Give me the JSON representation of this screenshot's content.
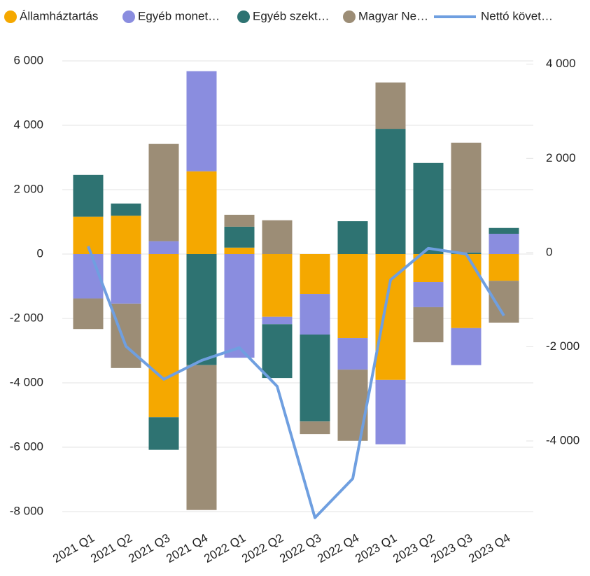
{
  "chart_data": {
    "type": "bar",
    "categories": [
      "2021 Q1",
      "2021 Q2",
      "2021 Q3",
      "2021 Q4",
      "2022 Q1",
      "2022 Q2",
      "2022 Q3",
      "2022 Q4",
      "2023 Q1",
      "2023 Q2",
      "2023 Q3",
      "2023 Q4"
    ],
    "series": [
      {
        "name": "Államháztartás",
        "color": "#f5a800",
        "values": [
          1160,
          1190,
          -5070,
          2570,
          200,
          -1950,
          -1240,
          -2610,
          -3910,
          -870,
          -2300,
          -830
        ]
      },
      {
        "name": "Egyéb monet…",
        "color": "#8a8ddf",
        "values": [
          -1380,
          -1540,
          400,
          3110,
          -3220,
          -230,
          -1260,
          -980,
          -2000,
          -780,
          -1150,
          630
        ]
      },
      {
        "name": "Egyéb szekt…",
        "color": "#2e7372",
        "values": [
          1300,
          380,
          -1010,
          -3450,
          650,
          -1670,
          -2700,
          1020,
          3890,
          2830,
          50,
          180
        ]
      },
      {
        "name": "Magyar Ne…",
        "color": "#9c8d76",
        "values": [
          -950,
          -2000,
          3020,
          -4500,
          370,
          1050,
          -390,
          -2210,
          1440,
          -1090,
          3410,
          -1300
        ]
      },
      {
        "name": "Nettó követ…",
        "color": "#6f9fe0",
        "type": "line",
        "axis": "y2",
        "values": [
          134,
          -1990,
          -2690,
          -2290,
          -2020,
          -2840,
          -5630,
          -4800,
          -580,
          90,
          -30,
          -1340
        ]
      }
    ],
    "ylim": [
      -8000,
      6000
    ],
    "yticks": [
      {
        "value": -8000,
        "label": "-8 000"
      },
      {
        "value": -6000,
        "label": "-6 000"
      },
      {
        "value": -4000,
        "label": "-4 000"
      },
      {
        "value": -2000,
        "label": "-2 000"
      },
      0,
      {
        "value": 2000,
        "label": "2 000"
      },
      {
        "value": 4000,
        "label": "4 000"
      },
      {
        "value": 6000,
        "label": "6 000"
      }
    ],
    "y2lim": [
      -5500,
      4070
    ],
    "y2ticks": [
      {
        "value": -4000,
        "label": "-4 000"
      },
      {
        "value": -2000,
        "label": "-2 000"
      },
      0,
      {
        "value": 2000,
        "label": "2 000"
      },
      {
        "value": 4000,
        "label": "4 000"
      }
    ],
    "grid": true,
    "legend": "top"
  }
}
